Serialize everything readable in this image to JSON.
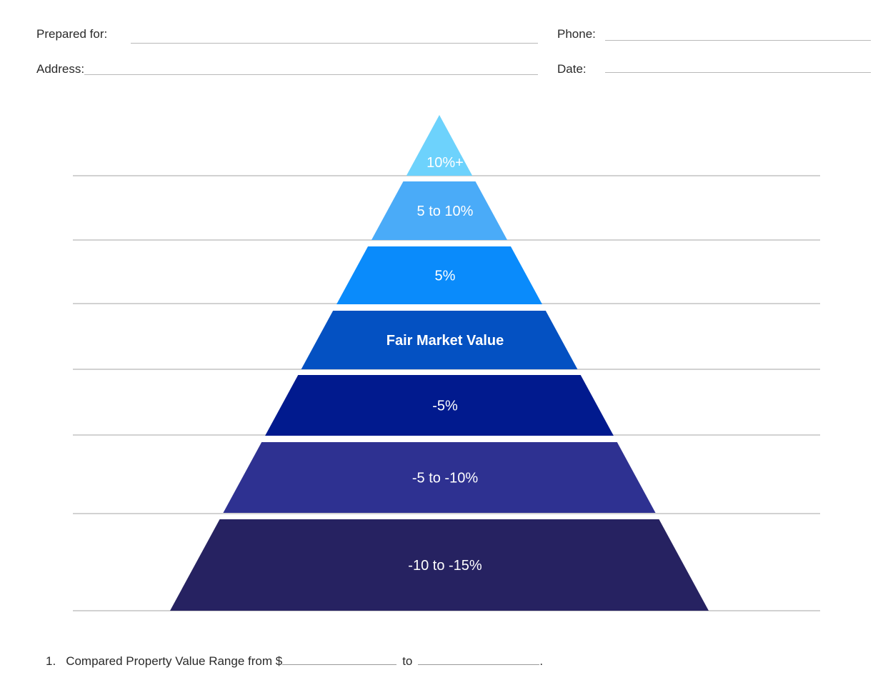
{
  "header": {
    "prepared_for_label": "Prepared for:",
    "phone_label": "Phone:",
    "address_label": "Address:",
    "date_label": "Date:"
  },
  "pyramid": {
    "tiers": [
      {
        "label": "10%+",
        "color": "#6DD2FC",
        "bold": false
      },
      {
        "label": "5 to 10%",
        "color": "#4AABF8",
        "bold": false
      },
      {
        "label": "5%",
        "color": "#0A8BFB",
        "bold": false
      },
      {
        "label": "Fair Market Value",
        "color": "#0451C2",
        "bold": true
      },
      {
        "label": "-5%",
        "color": "#011A8E",
        "bold": false
      },
      {
        "label": "-5 to -10%",
        "color": "#2E3191",
        "bold": false
      },
      {
        "label": "-10 to -15%",
        "color": "#262261",
        "bold": false
      }
    ]
  },
  "footer": {
    "number": "1.",
    "text": "Compared Property Value Range from $",
    "to_text": "to",
    "end_text": "."
  }
}
